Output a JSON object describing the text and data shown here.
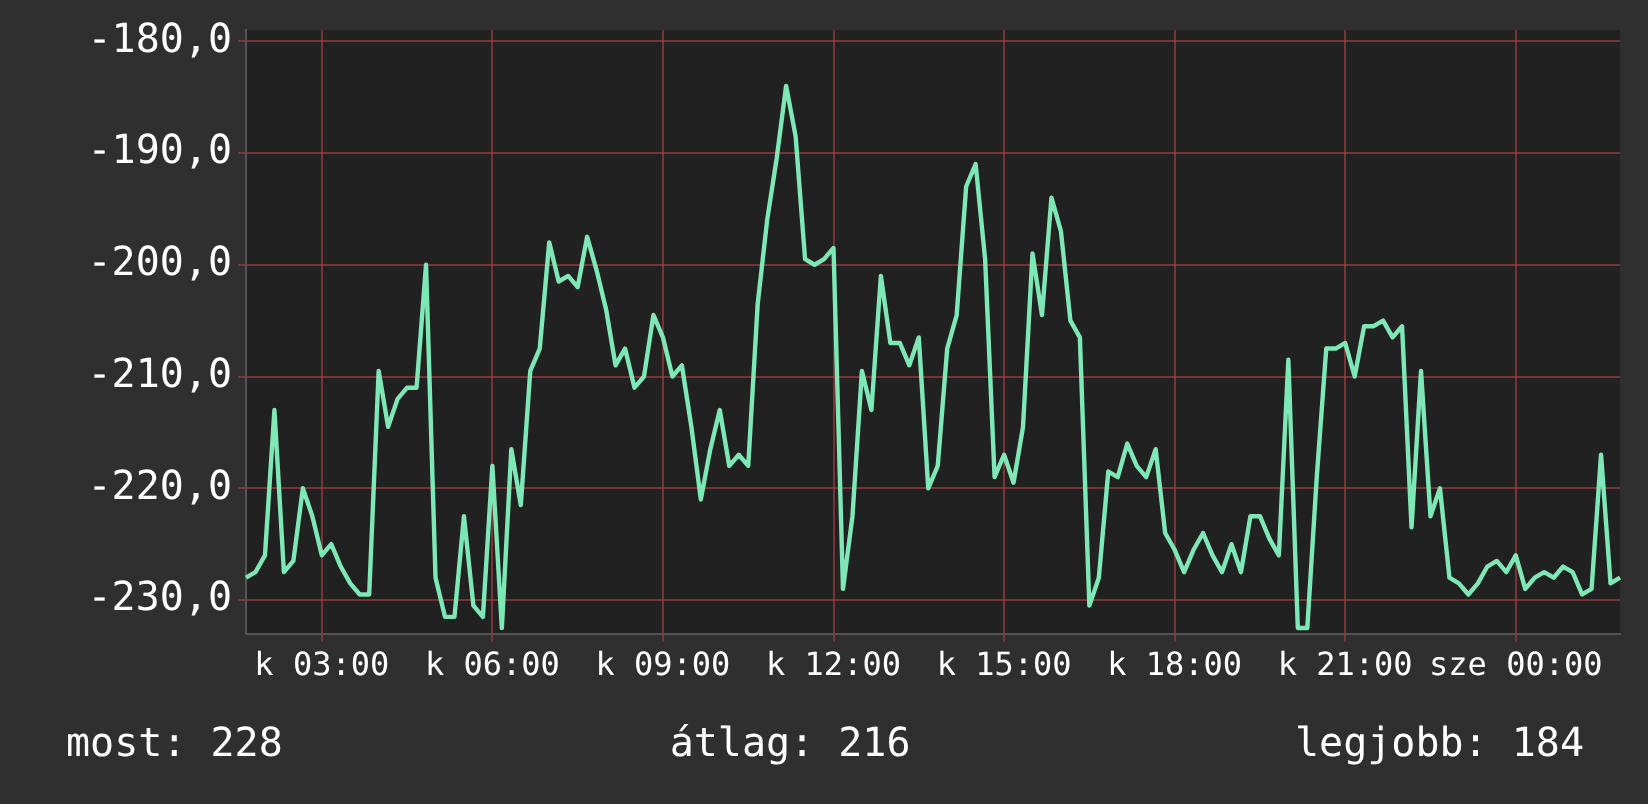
{
  "chart_data": {
    "type": "line",
    "ylim": [
      -233,
      -179
    ],
    "categories": [
      null,
      null,
      null,
      null,
      null,
      null,
      null,
      null,
      "k 03:00",
      null,
      null,
      null,
      null,
      null,
      null,
      null,
      null,
      null,
      null,
      null,
      null,
      null,
      null,
      null,
      null,
      null,
      "k 06:00",
      null,
      null,
      null,
      null,
      null,
      null,
      null,
      null,
      null,
      null,
      null,
      null,
      null,
      null,
      null,
      null,
      null,
      "k 09:00",
      null,
      null,
      null,
      null,
      null,
      null,
      null,
      null,
      null,
      null,
      null,
      null,
      null,
      null,
      null,
      null,
      null,
      "k 12:00",
      null,
      null,
      null,
      null,
      null,
      null,
      null,
      null,
      null,
      null,
      null,
      null,
      null,
      null,
      null,
      null,
      null,
      "k 15:00",
      null,
      null,
      null,
      null,
      null,
      null,
      null,
      null,
      null,
      null,
      null,
      null,
      null,
      null,
      null,
      null,
      null,
      "k 18:00",
      null,
      null,
      null,
      null,
      null,
      null,
      null,
      null,
      null,
      null,
      null,
      null,
      null,
      null,
      null,
      null,
      null,
      "k 21:00",
      null,
      null,
      null,
      null,
      null,
      null,
      null,
      null,
      null,
      null,
      null,
      null,
      null,
      null,
      null,
      null,
      null,
      "sze 00:00",
      null,
      null,
      null,
      null,
      null,
      null,
      null,
      null,
      null,
      null,
      null
    ],
    "yticks": [
      {
        "value": -230,
        "label": "-230,0"
      },
      {
        "value": -220,
        "label": "-220,0"
      },
      {
        "value": -210,
        "label": "-210,0"
      },
      {
        "value": -200,
        "label": "-200,0"
      },
      {
        "value": -190,
        "label": "-190,0"
      },
      {
        "value": -180,
        "label": "-180,0"
      }
    ],
    "grid": true,
    "legend": false,
    "marker": "none",
    "line_style": "solid",
    "annotations": [
      "most: 228",
      "átlag: 216",
      "legjobb: 184"
    ],
    "series": [
      {
        "color": "#7de8b5",
        "values": [
          -228,
          -227.5,
          -226,
          -213,
          -227.5,
          -226.5,
          -220,
          -222.5,
          -226,
          -225,
          -227,
          -228.5,
          -229.5,
          -229.5,
          -209.5,
          -214.5,
          -212,
          -211,
          -211,
          -200,
          -228,
          -231.5,
          -231.5,
          -222.5,
          -230.5,
          -231.5,
          -218,
          -232.5,
          -216.5,
          -221.5,
          -209.5,
          -207.5,
          -198,
          -201.5,
          -201,
          -202,
          -197.5,
          -200.5,
          -204,
          -209,
          -207.5,
          -211,
          -210,
          -204.5,
          -206.5,
          -210,
          -209,
          -214.5,
          -221,
          -216.5,
          -213,
          -218,
          -217,
          -218,
          -203.5,
          -196,
          -190.5,
          -184,
          -188.5,
          -199.5,
          -200,
          -199.5,
          -198.5,
          -229,
          -222.5,
          -209.5,
          -213,
          -201,
          -207,
          -207,
          -209,
          -206.5,
          -220,
          -218,
          -207.5,
          -204.5,
          -193,
          -191,
          -199.5,
          -219,
          -217,
          -219.5,
          -214.5,
          -199,
          -204.5,
          -194,
          -197,
          -205,
          -206.5,
          -230.5,
          -228,
          -218.5,
          -219,
          -216,
          -218,
          -219,
          -216.5,
          -224,
          -225.5,
          -227.5,
          -225.5,
          -224,
          -226,
          -227.5,
          -225,
          -227.5,
          -222.5,
          -222.5,
          -224.5,
          -226,
          -208.5,
          -232.5,
          -232.5,
          -219,
          -207.5,
          -207.5,
          -207,
          -210,
          -205.5,
          -205.5,
          -205,
          -206.5,
          -205.5,
          -223.5,
          -209.5,
          -222.5,
          -220,
          -228,
          -228.5,
          -229.5,
          -228.5,
          -227,
          -226.5,
          -227.5,
          -226,
          -229,
          -228,
          -227.5,
          -228,
          -227,
          -227.5,
          -229.5,
          -229,
          -217,
          -228.5,
          -228
        ]
      }
    ]
  }
}
